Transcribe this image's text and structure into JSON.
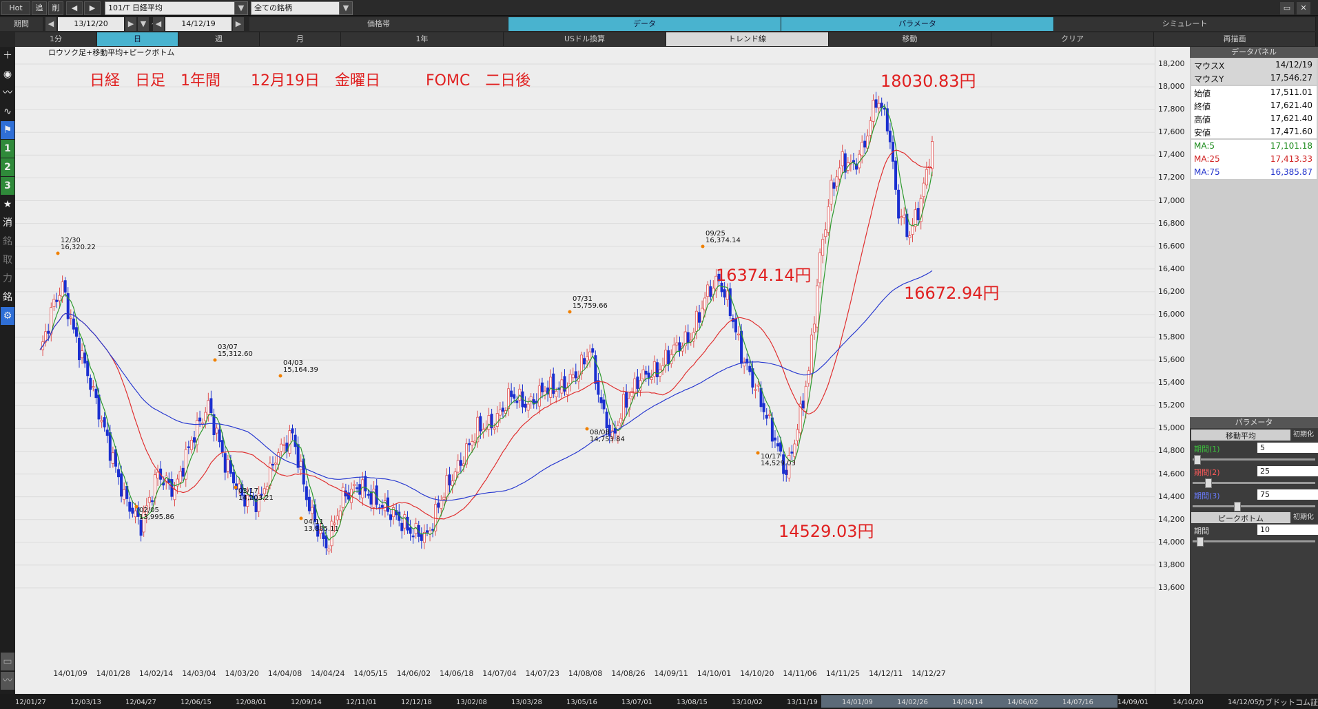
{
  "topbar": {
    "hot": "Hot",
    "add": "追",
    "del": "削",
    "symbol": "101/T 日経平均",
    "filter": "全ての銘柄"
  },
  "row2": {
    "period_label": "期間",
    "date_from": "13/12/20",
    "tilde": "~",
    "date_to": "14/12/19",
    "price_band": "価格帯",
    "data": "データ",
    "parameter": "パラメータ",
    "simulate": "シミュレート"
  },
  "row3": {
    "tabs": [
      "1分",
      "日",
      "週",
      "月",
      "1年",
      "USドル換算",
      "トレンド線",
      "移動",
      "クリア",
      "再描画"
    ]
  },
  "sidebar": {
    "icons": [
      "plus-icon",
      "camera-icon",
      "line-chart-icon",
      "wave-chart-icon",
      "flag-icon",
      "1",
      "2",
      "3",
      "star-icon",
      "消",
      "銘",
      "取",
      "力",
      "銘",
      "gear-icon"
    ]
  },
  "chart": {
    "legend": "ロウソク足+移動平均+ピークボトム",
    "annotation_title": "日経　日足　1年間　　12月19日　金曜日　　　FOMC　二日後",
    "peak_high": "18030.83円",
    "mid_high": "16374.14円",
    "recent": "16672.94円",
    "low": "14529.03円",
    "peaks": [
      {
        "date": "12/30",
        "value": "16,320.22"
      },
      {
        "date": "02/05",
        "value": "13,995.86"
      },
      {
        "date": "03/07",
        "value": "15,312.60"
      },
      {
        "date": "03/17",
        "value": "14,203.21"
      },
      {
        "date": "04/03",
        "value": "15,164.39"
      },
      {
        "date": "04/11",
        "value": "13,885.11"
      },
      {
        "date": "07/31",
        "value": "15,759.66"
      },
      {
        "date": "08/08",
        "value": "14,753.84"
      },
      {
        "date": "09/25",
        "value": "16,374.14"
      },
      {
        "date": "10/17",
        "value": "14,529.03"
      }
    ],
    "y_ticks": [
      "18,200",
      "18,000",
      "17,800",
      "17,600",
      "17,400",
      "17,200",
      "17,000",
      "16,800",
      "16,600",
      "16,400",
      "16,200",
      "16,000",
      "15,800",
      "15,600",
      "15,400",
      "15,200",
      "15,000",
      "14,800",
      "14,600",
      "14,400",
      "14,200",
      "14,000",
      "13,800",
      "13,600"
    ],
    "x_ticks": [
      "14/01/09",
      "14/01/28",
      "14/02/14",
      "14/03/04",
      "14/03/20",
      "14/04/08",
      "14/04/24",
      "14/05/15",
      "14/06/02",
      "14/06/18",
      "14/07/04",
      "14/07/23",
      "14/08/08",
      "14/08/26",
      "14/09/11",
      "14/10/01",
      "14/10/20",
      "14/11/06",
      "14/11/25",
      "14/12/11",
      "14/12/27"
    ],
    "colors": {
      "ma5": "#2e9a2e",
      "ma25": "#e03030",
      "ma75": "#2a3bd0",
      "up": "#e05050",
      "down": "#1a2fd0"
    }
  },
  "bottom_axis": [
    "12/01/27",
    "12/03/13",
    "12/04/27",
    "12/06/15",
    "12/08/01",
    "12/09/14",
    "12/11/01",
    "12/12/18",
    "13/02/08",
    "13/03/28",
    "13/05/16",
    "13/07/01",
    "13/08/15",
    "13/10/02",
    "13/11/19",
    "14/01/09",
    "14/02/26",
    "14/04/14",
    "14/06/02",
    "14/07/16",
    "14/09/01",
    "14/10/20",
    "14/12/05"
  ],
  "bottom_brand": "カブドットコム証券",
  "data_panel": {
    "title": "データパネル",
    "rows": [
      {
        "k": "マウスX",
        "v": "14/12/19"
      },
      {
        "k": "マウスY",
        "v": "17,546.27"
      },
      {
        "k": "始値",
        "v": "17,511.01"
      },
      {
        "k": "終値",
        "v": "17,621.40"
      },
      {
        "k": "高値",
        "v": "17,621.40"
      },
      {
        "k": "安値",
        "v": "17,471.60"
      },
      {
        "k": "MA:5",
        "v": "17,101.18"
      },
      {
        "k": "MA:25",
        "v": "17,413.33"
      },
      {
        "k": "MA:75",
        "v": "16,385.87"
      }
    ]
  },
  "param_panel": {
    "title": "パラメータ",
    "ma_title": "移動平均",
    "init_btn": "初期化",
    "p1_label": "期間(1)",
    "p1_value": "5",
    "p2_label": "期間(2)",
    "p2_value": "25",
    "p3_label": "期間(3)",
    "p3_value": "75",
    "pb_title": "ピークボトム",
    "pb_label": "期間",
    "pb_value": "10"
  }
}
